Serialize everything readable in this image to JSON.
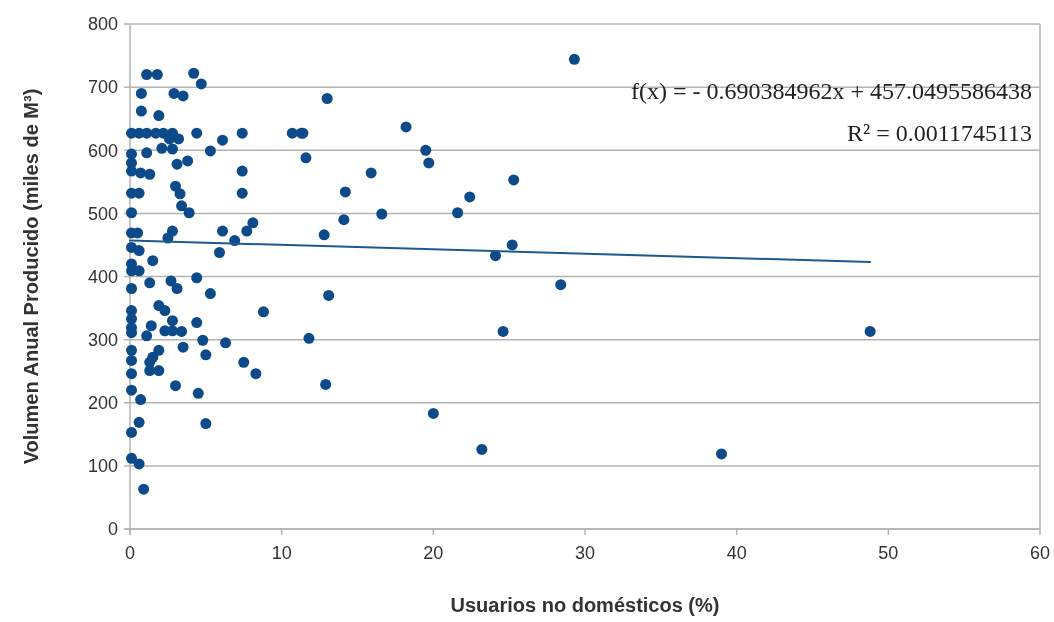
{
  "chart_data": {
    "type": "scatter",
    "xlabel": "Usuarios no domésticos (%)",
    "ylabel": "Volumen Anual Producido (miles de M³)",
    "xlim": [
      0,
      60
    ],
    "xticks": [
      0,
      10,
      20,
      30,
      40,
      50,
      60
    ],
    "ylim": [
      0,
      800
    ],
    "yticks": [
      0,
      100,
      200,
      300,
      400,
      500,
      600,
      700,
      800
    ],
    "grid": "y",
    "annotations": [
      "f(x) = - 0.690384962x + 457.0495586438",
      "R² = 0.0011745113"
    ],
    "series": [
      {
        "marker": "circle",
        "color": "#0d4a8a",
        "x": [
          48.8,
          39.0,
          29.3,
          13.0,
          11.4,
          11.6,
          18.2,
          19.5,
          19.7,
          25.3,
          15.9,
          14.2,
          14.1,
          16.6,
          22.4,
          21.6,
          12.8,
          24.1,
          25.2,
          13.1,
          28.4,
          11.8,
          24.6,
          12.9,
          20.0,
          23.2,
          1.1,
          1.8,
          4.2,
          4.7,
          0.75,
          2.9,
          3.5,
          0.75,
          1.9,
          0.1,
          0.6,
          1.1,
          1.7,
          2.2,
          2.8,
          4.4,
          7.4,
          10.7,
          11.3,
          2.6,
          3.2,
          2.1,
          2.8,
          6.1,
          5.3,
          0.1,
          0.1,
          0.1,
          1.1,
          0.7,
          1.3,
          3.1,
          3.8,
          7.4,
          7.4,
          0.1,
          0.6,
          3.0,
          3.3,
          0.1,
          3.4,
          3.9,
          8.1,
          7.7,
          0.1,
          0.5,
          2.8,
          2.5,
          6.1,
          6.9,
          5.9,
          0.1,
          0.6,
          1.5,
          0.1,
          0.1,
          0.6,
          1.3,
          2.7,
          3.1,
          4.4,
          0.1,
          5.3,
          0.1,
          0.1,
          0.1,
          0.1,
          1.9,
          2.3,
          2.8,
          1.4,
          1.1,
          2.3,
          2.8,
          3.4,
          4.4,
          4.8,
          6.3,
          3.5,
          5.0,
          1.9,
          1.5,
          0.1,
          0.1,
          0.1,
          1.3,
          1.3,
          1.9,
          7.5,
          8.3,
          3.0,
          4.5,
          0.1,
          0.7,
          5.0,
          0.6,
          0.1,
          0.1,
          0.6,
          0.9,
          8.8
        ],
        "values": [
          313,
          119,
          744,
          682,
          627,
          588,
          637,
          600,
          580,
          553,
          564,
          534,
          490,
          499,
          526,
          501,
          466,
          433,
          450,
          370,
          387,
          302,
          313,
          229,
          183,
          126,
          720,
          720,
          722,
          705,
          690,
          690,
          686,
          662,
          655,
          627,
          627,
          627,
          627,
          627,
          627,
          627,
          627,
          627,
          627,
          618,
          618,
          603,
          602,
          616,
          599,
          594,
          580,
          567,
          596,
          564,
          562,
          578,
          583,
          567,
          532,
          532,
          532,
          543,
          531,
          501,
          512,
          501,
          485,
          472,
          469,
          469,
          472,
          461,
          472,
          457,
          438,
          446,
          441,
          425,
          420,
          409,
          409,
          390,
          393,
          381,
          398,
          381,
          373,
          346,
          333,
          319,
          311,
          354,
          346,
          330,
          322,
          306,
          314,
          314,
          313,
          327,
          299,
          295,
          288,
          276,
          283,
          272,
          283,
          267,
          246,
          264,
          251,
          251,
          264,
          246,
          227,
          215,
          220,
          205,
          167,
          169,
          153,
          112,
          103,
          63,
          344
        ]
      },
      {
        "type": "line",
        "color": "#1f5a8e",
        "x": [
          0,
          48.8
        ],
        "values": [
          457,
          423
        ]
      }
    ]
  }
}
